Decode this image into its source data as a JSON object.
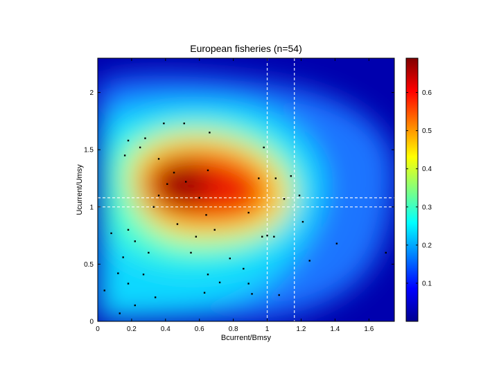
{
  "chart_data": {
    "type": "heatmap",
    "title": "European fisheries (n=54)",
    "xlabel": "Bcurrent/Bmsy",
    "ylabel": "Ucurrent/Umsy",
    "xlim": [
      0,
      1.75
    ],
    "ylim": [
      0,
      2.3
    ],
    "x_ticks": [
      0,
      0.2,
      0.4,
      0.6,
      0.8,
      1,
      1.2,
      1.4,
      1.6
    ],
    "x_tick_labels": [
      "0",
      "0.2",
      "0.4",
      "0.6",
      "0.8",
      "1",
      "1.2",
      "1.4",
      "1.6"
    ],
    "y_ticks": [
      0,
      0.5,
      1,
      1.5,
      2
    ],
    "y_tick_labels": [
      "0",
      "0.5",
      "1",
      "1.5",
      "2"
    ],
    "colorbar": {
      "range": [
        0,
        0.69
      ],
      "ticks": [
        0.1,
        0.2,
        0.3,
        0.4,
        0.5,
        0.6
      ],
      "tick_labels": [
        "0.1",
        "0.2",
        "0.3",
        "0.4",
        "0.5",
        "0.6"
      ],
      "colormap": "jet"
    },
    "reference_lines": [
      {
        "orientation": "vertical",
        "value": 1.0,
        "style": "dashed",
        "color": "#ffffff"
      },
      {
        "orientation": "vertical",
        "value": 1.16,
        "style": "dashed",
        "color": "#ffffff"
      },
      {
        "orientation": "horizontal",
        "value": 1.0,
        "style": "dashed",
        "color": "#ffffff"
      },
      {
        "orientation": "horizontal",
        "value": 1.08,
        "style": "dashed",
        "color": "#ffffff"
      }
    ],
    "points": [
      {
        "x": 0.28,
        "y": 1.6
      },
      {
        "x": 0.18,
        "y": 1.58
      },
      {
        "x": 0.25,
        "y": 1.52
      },
      {
        "x": 0.39,
        "y": 1.73
      },
      {
        "x": 0.51,
        "y": 1.73
      },
      {
        "x": 0.66,
        "y": 1.65
      },
      {
        "x": 0.98,
        "y": 1.52
      },
      {
        "x": 0.16,
        "y": 1.45
      },
      {
        "x": 0.36,
        "y": 1.42
      },
      {
        "x": 0.45,
        "y": 1.3
      },
      {
        "x": 0.52,
        "y": 1.22
      },
      {
        "x": 0.65,
        "y": 1.32
      },
      {
        "x": 0.95,
        "y": 1.25
      },
      {
        "x": 1.05,
        "y": 1.25
      },
      {
        "x": 1.14,
        "y": 1.27
      },
      {
        "x": 1.19,
        "y": 1.1
      },
      {
        "x": 1.1,
        "y": 1.07
      },
      {
        "x": 0.36,
        "y": 1.1
      },
      {
        "x": 0.33,
        "y": 1.0
      },
      {
        "x": 0.41,
        "y": 1.2
      },
      {
        "x": 0.47,
        "y": 0.85
      },
      {
        "x": 0.6,
        "y": 1.08
      },
      {
        "x": 0.64,
        "y": 0.93
      },
      {
        "x": 0.69,
        "y": 0.8
      },
      {
        "x": 0.58,
        "y": 0.74
      },
      {
        "x": 0.89,
        "y": 0.95
      },
      {
        "x": 0.97,
        "y": 0.74
      },
      {
        "x": 1.0,
        "y": 0.75
      },
      {
        "x": 1.04,
        "y": 0.74
      },
      {
        "x": 1.21,
        "y": 0.87
      },
      {
        "x": 0.18,
        "y": 0.8
      },
      {
        "x": 0.08,
        "y": 0.77
      },
      {
        "x": 0.22,
        "y": 0.7
      },
      {
        "x": 0.15,
        "y": 0.56
      },
      {
        "x": 0.12,
        "y": 0.42
      },
      {
        "x": 0.27,
        "y": 0.41
      },
      {
        "x": 0.18,
        "y": 0.33
      },
      {
        "x": 0.04,
        "y": 0.27
      },
      {
        "x": 0.13,
        "y": 0.07
      },
      {
        "x": 0.22,
        "y": 0.14
      },
      {
        "x": 0.34,
        "y": 0.21
      },
      {
        "x": 0.63,
        "y": 0.25
      },
      {
        "x": 0.65,
        "y": 0.41
      },
      {
        "x": 0.72,
        "y": 0.34
      },
      {
        "x": 0.86,
        "y": 0.46
      },
      {
        "x": 0.89,
        "y": 0.33
      },
      {
        "x": 0.91,
        "y": 0.24
      },
      {
        "x": 1.07,
        "y": 0.23
      },
      {
        "x": 1.25,
        "y": 0.53
      },
      {
        "x": 1.41,
        "y": 0.68
      },
      {
        "x": 1.7,
        "y": 0.6
      },
      {
        "x": 0.78,
        "y": 0.55
      },
      {
        "x": 0.55,
        "y": 0.6
      },
      {
        "x": 0.3,
        "y": 0.6
      }
    ]
  }
}
